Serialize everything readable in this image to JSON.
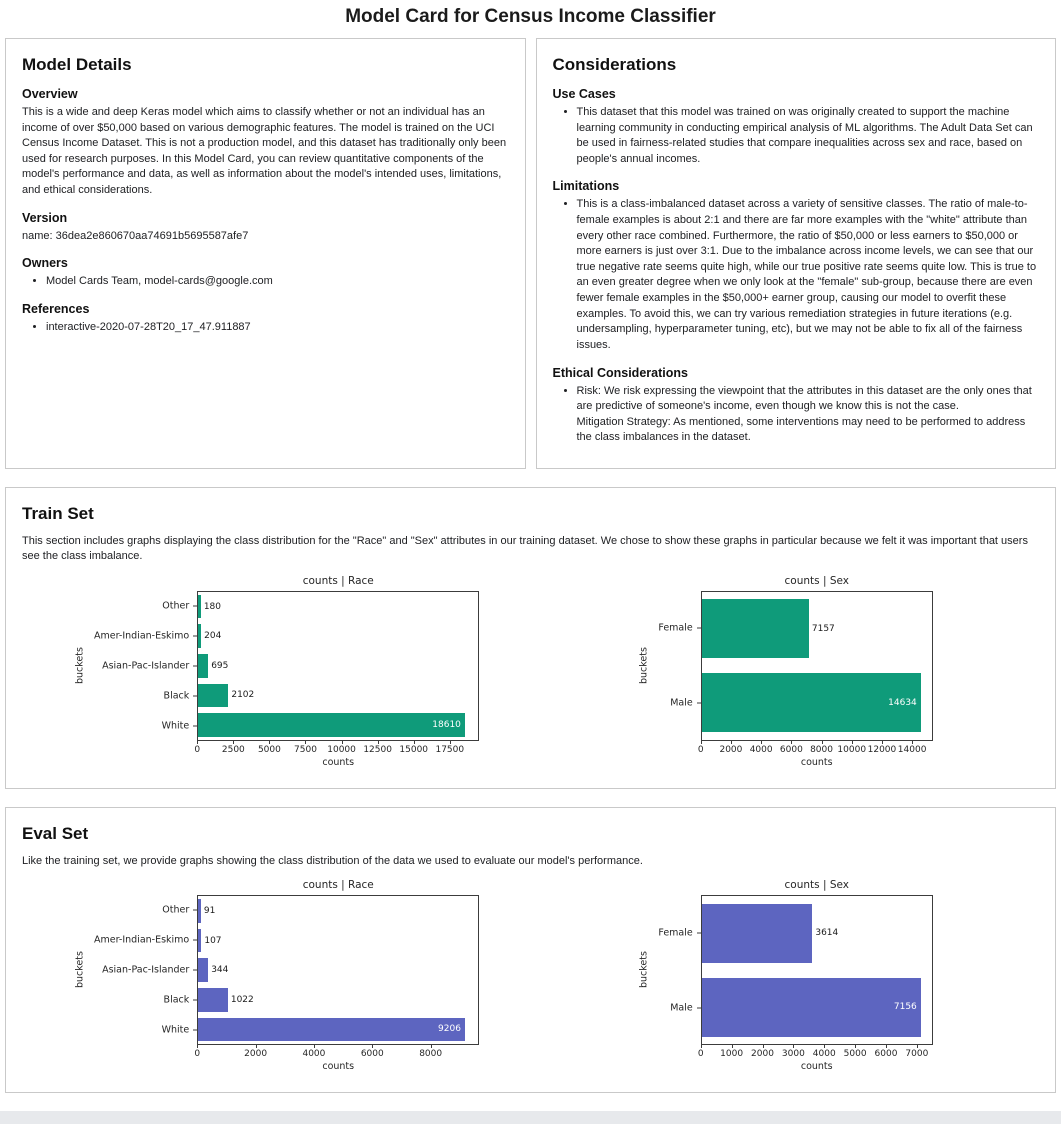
{
  "page": {
    "title": "Model Card for Census Income Classifier"
  },
  "model_details": {
    "title": "Model Details",
    "overview_heading": "Overview",
    "overview_text": "This is a wide and deep Keras model which aims to classify whether or not an individual has an income of over $50,000 based on various demographic features. The model is trained on the UCI Census Income Dataset. This is not a production model, and this dataset has traditionally only been used for research purposes. In this Model Card, you can review quantitative components of the model's performance and data, as well as information about the model's intended uses, limitations, and ethical considerations.",
    "version_heading": "Version",
    "version_text": "name: 36dea2e860670aa74691b5695587afe7",
    "owners_heading": "Owners",
    "owners_items": [
      "Model Cards Team, model-cards@google.com"
    ],
    "references_heading": "References",
    "references_items": [
      "interactive-2020-07-28T20_17_47.911887"
    ]
  },
  "considerations": {
    "title": "Considerations",
    "use_cases_heading": "Use Cases",
    "use_cases_items": [
      "This dataset that this model was trained on was originally created to support the machine learning community in conducting empirical analysis of ML algorithms. The Adult Data Set can be used in fairness-related studies that compare inequalities across sex and race, based on people's annual incomes."
    ],
    "limitations_heading": "Limitations",
    "limitations_items": [
      "This is a class-imbalanced dataset across a variety of sensitive classes. The ratio of male-to-female examples is about 2:1 and there are far more examples with the \"white\" attribute than every other race combined. Furthermore, the ratio of $50,000 or less earners to $50,000 or more earners is just over 3:1. Due to the imbalance across income levels, we can see that our true negative rate seems quite high, while our true positive rate seems quite low. This is true to an even greater degree when we only look at the \"female\" sub-group, because there are even fewer female examples in the $50,000+ earner group, causing our model to overfit these examples. To avoid this, we can try various remediation strategies in future iterations (e.g. undersampling, hyperparameter tuning, etc), but we may not be able to fix all of the fairness issues."
    ],
    "ethical_heading": "Ethical Considerations",
    "ethical_items": [
      "Risk: We risk expressing the viewpoint that the attributes in this dataset are the only ones that are predictive of someone's income, even though we know this is not the case.\nMitigation Strategy: As mentioned, some interventions may need to be performed to address the class imbalances in the dataset."
    ]
  },
  "train_set": {
    "title": "Train Set",
    "description": "This section includes graphs displaying the class distribution for the \"Race\" and \"Sex\" attributes in our training dataset. We chose to show these graphs in particular because we felt it was important that users see the class imbalance."
  },
  "eval_set": {
    "title": "Eval Set",
    "description": "Like the training set, we provide graphs showing the class distribution of the data we used to evaluate our model's performance."
  },
  "chart_data": [
    {
      "id": "train-race",
      "type": "bar",
      "orientation": "horizontal",
      "title": "counts | Race",
      "xlabel": "counts",
      "ylabel": "buckets",
      "categories": [
        "Other",
        "Amer-Indian-Eskimo",
        "Asian-Pac-Islander",
        "Black",
        "White"
      ],
      "values": [
        180,
        204,
        695,
        2102,
        18610
      ],
      "xticks": [
        0,
        2500,
        5000,
        7500,
        10000,
        12500,
        15000,
        17500
      ],
      "xlim": [
        0,
        19540
      ],
      "grid": false,
      "color": "#0f9b7a"
    },
    {
      "id": "train-sex",
      "type": "bar",
      "orientation": "horizontal",
      "title": "counts | Sex",
      "xlabel": "counts",
      "ylabel": "buckets",
      "categories": [
        "Female",
        "Male"
      ],
      "values": [
        7157,
        14634
      ],
      "xticks": [
        0,
        2000,
        4000,
        6000,
        8000,
        10000,
        12000,
        14000
      ],
      "xlim": [
        0,
        15365
      ],
      "grid": false,
      "color": "#0f9b7a"
    },
    {
      "id": "eval-race",
      "type": "bar",
      "orientation": "horizontal",
      "title": "counts | Race",
      "xlabel": "counts",
      "ylabel": "buckets",
      "categories": [
        "Other",
        "Amer-Indian-Eskimo",
        "Asian-Pac-Islander",
        "Black",
        "White"
      ],
      "values": [
        91,
        107,
        344,
        1022,
        9206
      ],
      "xticks": [
        0,
        2000,
        4000,
        6000,
        8000
      ],
      "xlim": [
        0,
        9666
      ],
      "grid": false,
      "color": "#5d65c0"
    },
    {
      "id": "eval-sex",
      "type": "bar",
      "orientation": "horizontal",
      "title": "counts | Sex",
      "xlabel": "counts",
      "ylabel": "buckets",
      "categories": [
        "Female",
        "Male"
      ],
      "values": [
        3614,
        7156
      ],
      "xticks": [
        0,
        1000,
        2000,
        3000,
        4000,
        5000,
        6000,
        7000
      ],
      "xlim": [
        0,
        7514
      ],
      "grid": false,
      "color": "#5d65c0"
    }
  ]
}
